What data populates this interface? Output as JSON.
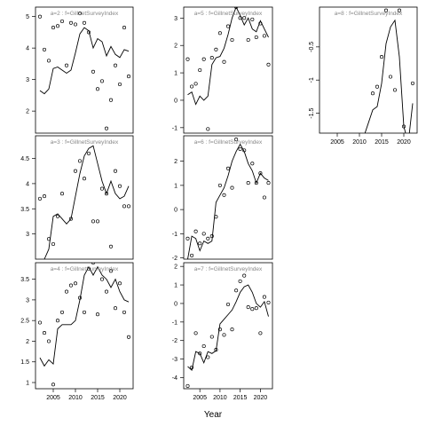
{
  "figure": {
    "xlabel": "Year"
  },
  "chart_data": [
    {
      "type": "line",
      "title": "a=2 : f=GillnetSurveyIndex",
      "x_range": [
        2001,
        2023
      ],
      "ylim": [
        1.3,
        5.3
      ],
      "yticks": [
        2,
        3,
        4,
        5
      ],
      "yticks_rotated": false,
      "xticks": [],
      "model_x": [
        2002,
        2003,
        2004,
        2005,
        2006,
        2007,
        2008,
        2009,
        2010,
        2011,
        2012,
        2013,
        2014,
        2015,
        2016,
        2017,
        2018,
        2019,
        2020,
        2021,
        2022
      ],
      "model_y": [
        2.65,
        2.55,
        2.7,
        3.35,
        3.4,
        3.3,
        3.2,
        3.3,
        3.85,
        4.45,
        4.65,
        4.55,
        4.0,
        4.3,
        4.2,
        3.75,
        4.05,
        3.8,
        3.7,
        3.95,
        3.9
      ],
      "obs_x": [
        2002,
        2003,
        2004,
        2005,
        2006,
        2007,
        2008,
        2009,
        2010,
        2011,
        2012,
        2013,
        2014,
        2015,
        2016,
        2017,
        2018,
        2019,
        2020,
        2021,
        2022
      ],
      "obs_y": [
        5.0,
        3.95,
        3.6,
        4.65,
        4.7,
        4.85,
        3.45,
        4.8,
        4.75,
        5.1,
        4.8,
        4.5,
        3.25,
        2.7,
        2.95,
        1.45,
        2.35,
        3.45,
        2.85,
        4.65,
        3.1
      ]
    },
    {
      "type": "line",
      "title": "a=5 : f=GillnetSurveyIndex",
      "x_range": [
        2001,
        2023
      ],
      "ylim": [
        -1.2,
        3.4
      ],
      "yticks": [
        -1,
        0,
        1,
        2,
        3
      ],
      "yticks_rotated": false,
      "xticks": [],
      "model_x": [
        2002,
        2003,
        2004,
        2005,
        2006,
        2007,
        2008,
        2009,
        2010,
        2011,
        2012,
        2013,
        2014,
        2015,
        2016,
        2017,
        2018,
        2019,
        2020,
        2021,
        2022
      ],
      "model_y": [
        0.2,
        0.3,
        -0.15,
        0.15,
        0.0,
        0.15,
        1.3,
        1.55,
        1.6,
        1.9,
        2.4,
        3.0,
        3.4,
        3.1,
        2.75,
        3.0,
        2.6,
        2.5,
        2.9,
        2.6,
        2.3
      ],
      "obs_x": [
        2002,
        2003,
        2004,
        2005,
        2006,
        2007,
        2008,
        2009,
        2010,
        2011,
        2012,
        2013,
        2014,
        2015,
        2016,
        2017,
        2018,
        2019,
        2020,
        2021,
        2022
      ],
      "obs_y": [
        1.5,
        0.5,
        0.6,
        1.1,
        1.5,
        -1.05,
        1.55,
        1.85,
        2.45,
        1.4,
        2.7,
        2.2,
        3.4,
        3.0,
        3.0,
        2.2,
        2.95,
        2.3,
        2.8,
        2.35,
        1.3
      ]
    },
    {
      "type": "line",
      "title": "a=8 : f=GillnetSurveyIndex",
      "x_range": [
        2001,
        2023
      ],
      "ylim": [
        -1.8,
        0.1
      ],
      "yticks": [
        -1.5,
        -1.0,
        -0.5
      ],
      "yticks_rotated": true,
      "xticks": [
        2005,
        2010,
        2015,
        2020
      ],
      "model_x": [
        2009,
        2010,
        2011,
        2012,
        2013,
        2014,
        2015,
        2016,
        2017,
        2018,
        2019,
        2020,
        2021,
        2022
      ],
      "model_y": [
        -2.3,
        -2.1,
        -1.85,
        -1.65,
        -1.45,
        -1.4,
        -1.05,
        -0.45,
        -0.2,
        -0.1,
        -0.65,
        -1.7,
        -1.95,
        -1.35
      ],
      "obs_x": [
        2012,
        2013,
        2014,
        2015,
        2016,
        2017,
        2018,
        2019,
        2020,
        2022
      ],
      "obs_y": [
        -2.15,
        -1.2,
        -1.1,
        -0.65,
        0.05,
        -0.95,
        -1.15,
        0.05,
        -1.7,
        -1.05
      ]
    },
    {
      "type": "line",
      "title": "a=3 : f=GillnetSurveyIndex",
      "x_range": [
        2001,
        2023
      ],
      "ylim": [
        2.5,
        4.95
      ],
      "yticks": [
        3.0,
        3.5,
        4.0,
        4.5
      ],
      "yticks_rotated": false,
      "xticks": [],
      "model_x": [
        2002,
        2003,
        2004,
        2005,
        2006,
        2007,
        2008,
        2009,
        2010,
        2011,
        2012,
        2013,
        2014,
        2015,
        2016,
        2017,
        2018,
        2019,
        2020,
        2021,
        2022
      ],
      "model_y": [
        2.45,
        2.5,
        2.7,
        3.35,
        3.4,
        3.3,
        3.2,
        3.3,
        3.75,
        4.2,
        4.55,
        4.7,
        4.75,
        4.4,
        4.05,
        3.8,
        4.05,
        3.8,
        3.7,
        3.75,
        3.95
      ],
      "obs_x": [
        2002,
        2003,
        2004,
        2005,
        2006,
        2007,
        2008,
        2009,
        2010,
        2011,
        2012,
        2013,
        2014,
        2015,
        2016,
        2017,
        2018,
        2019,
        2020,
        2021,
        2022
      ],
      "obs_y": [
        3.7,
        3.75,
        2.9,
        2.8,
        3.35,
        3.8,
        2.3,
        3.3,
        4.25,
        4.45,
        4.1,
        4.6,
        3.25,
        3.25,
        3.9,
        3.8,
        2.75,
        4.25,
        3.95,
        3.55,
        3.55
      ]
    },
    {
      "type": "line",
      "title": "a=6 : f=GillnetSurveyIndex",
      "x_range": [
        2001,
        2023
      ],
      "ylim": [
        -2.05,
        3.05
      ],
      "yticks": [
        -2,
        -1,
        0,
        1,
        2
      ],
      "yticks_rotated": false,
      "xticks": [],
      "model_x": [
        2002,
        2003,
        2004,
        2005,
        2006,
        2007,
        2008,
        2009,
        2010,
        2011,
        2012,
        2013,
        2014,
        2015,
        2016,
        2017,
        2018,
        2019,
        2020,
        2021,
        2022
      ],
      "model_y": [
        -2.05,
        -1.1,
        -1.2,
        -1.7,
        -1.3,
        -1.4,
        -1.3,
        0.3,
        0.6,
        0.9,
        1.4,
        2.0,
        2.4,
        2.7,
        2.4,
        1.9,
        1.6,
        1.1,
        1.5,
        1.3,
        1.2
      ],
      "obs_x": [
        2002,
        2003,
        2004,
        2005,
        2006,
        2007,
        2008,
        2009,
        2010,
        2011,
        2012,
        2013,
        2014,
        2015,
        2016,
        2017,
        2018,
        2019,
        2020,
        2021,
        2022
      ],
      "obs_y": [
        -1.2,
        -1.9,
        -0.9,
        -1.4,
        -1.0,
        -1.2,
        -1.1,
        -0.3,
        1.0,
        0.6,
        1.7,
        0.9,
        2.9,
        2.5,
        2.45,
        1.1,
        1.9,
        1.1,
        1.5,
        0.5,
        1.1
      ]
    },
    {
      "type": "line",
      "title": "a=4 : f=GillnetSurveyIndex",
      "x_range": [
        2001,
        2023
      ],
      "ylim": [
        0.85,
        3.9
      ],
      "yticks": [
        1.0,
        1.5,
        2.0,
        2.5,
        3.0,
        3.5
      ],
      "yticks_rotated": false,
      "xticks": [
        2005,
        2010,
        2015,
        2020
      ],
      "model_x": [
        2002,
        2003,
        2004,
        2005,
        2006,
        2007,
        2008,
        2009,
        2010,
        2011,
        2012,
        2013,
        2014,
        2015,
        2016,
        2017,
        2018,
        2019,
        2020,
        2021,
        2022
      ],
      "model_y": [
        1.6,
        1.4,
        1.55,
        1.45,
        2.3,
        2.4,
        2.4,
        2.4,
        2.5,
        3.0,
        3.6,
        3.8,
        3.6,
        3.8,
        3.6,
        3.5,
        3.3,
        3.5,
        3.2,
        3.0,
        2.95
      ],
      "obs_x": [
        2002,
        2003,
        2004,
        2005,
        2006,
        2007,
        2008,
        2009,
        2010,
        2011,
        2012,
        2013,
        2014,
        2015,
        2016,
        2017,
        2018,
        2019,
        2020,
        2021,
        2022
      ],
      "obs_y": [
        2.45,
        2.2,
        2.0,
        0.95,
        2.5,
        2.7,
        3.2,
        3.35,
        3.4,
        3.05,
        2.7,
        3.75,
        3.9,
        2.65,
        3.5,
        3.2,
        3.7,
        2.8,
        3.4,
        2.7,
        2.1
      ]
    },
    {
      "type": "line",
      "title": "a=7 : f=GillnetSurveyIndex",
      "x_range": [
        2001,
        2023
      ],
      "ylim": [
        -4.6,
        2.2
      ],
      "yticks": [
        -4,
        -3,
        -2,
        -1,
        0,
        1,
        2
      ],
      "yticks_rotated": false,
      "xticks": [
        2005,
        2010,
        2015,
        2020
      ],
      "model_x": [
        2002,
        2003,
        2004,
        2005,
        2006,
        2007,
        2008,
        2009,
        2010,
        2011,
        2012,
        2013,
        2014,
        2015,
        2016,
        2017,
        2018,
        2019,
        2020,
        2021,
        2022
      ],
      "model_y": [
        -3.4,
        -3.6,
        -2.6,
        -2.7,
        -3.2,
        -2.6,
        -2.7,
        -2.55,
        -1.1,
        -0.85,
        -0.6,
        -0.35,
        0.1,
        0.6,
        0.9,
        1.0,
        0.6,
        0.0,
        -0.2,
        0.1,
        -0.7
      ],
      "obs_x": [
        2002,
        2003,
        2004,
        2005,
        2006,
        2007,
        2008,
        2009,
        2010,
        2011,
        2012,
        2013,
        2014,
        2015,
        2016,
        2017,
        2018,
        2019,
        2020,
        2021,
        2022
      ],
      "obs_y": [
        -4.45,
        -3.45,
        -1.6,
        -2.7,
        -2.3,
        -2.9,
        -1.8,
        -2.5,
        -1.4,
        -1.7,
        -0.05,
        -1.4,
        0.7,
        1.2,
        1.5,
        -0.2,
        -0.3,
        -0.25,
        -1.6,
        0.35,
        0.05
      ]
    }
  ]
}
